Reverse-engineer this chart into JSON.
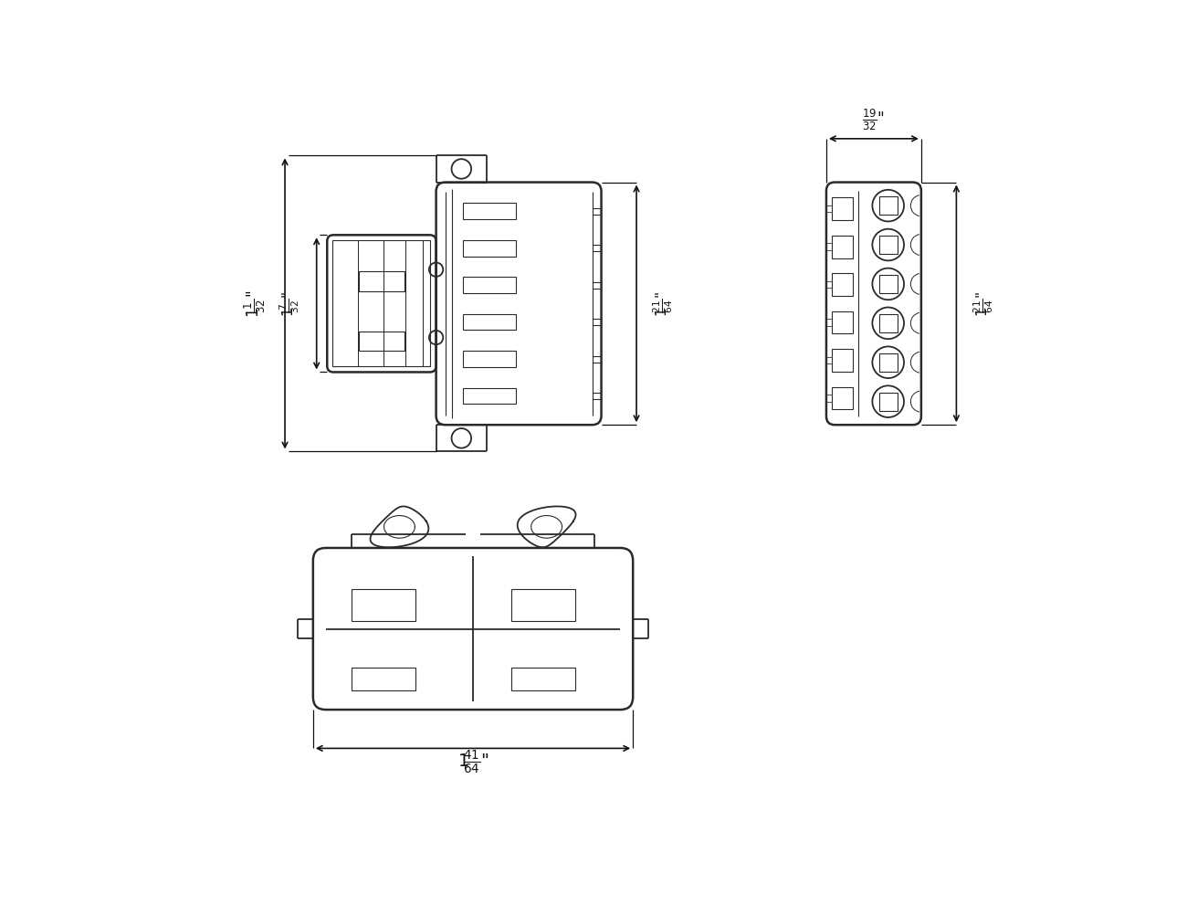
{
  "bg_color": "#ffffff",
  "lc": "#2a2a2a",
  "lc2": "#444444",
  "dc": "#111111",
  "lw": 1.3,
  "lw2": 1.8,
  "lw_thin": 0.8,
  "dim_label_11_32": "1¹⁄₃₂\"",
  "dim_label_17_32": "1⁷⁄₃₂\"",
  "dim_label_121_64": "1²¹⁄₆₄\"",
  "dim_label_19_32": "¹⁹⁄₃₂\"",
  "dim_label_141_64": "1⁴¹⁄₆₄\""
}
